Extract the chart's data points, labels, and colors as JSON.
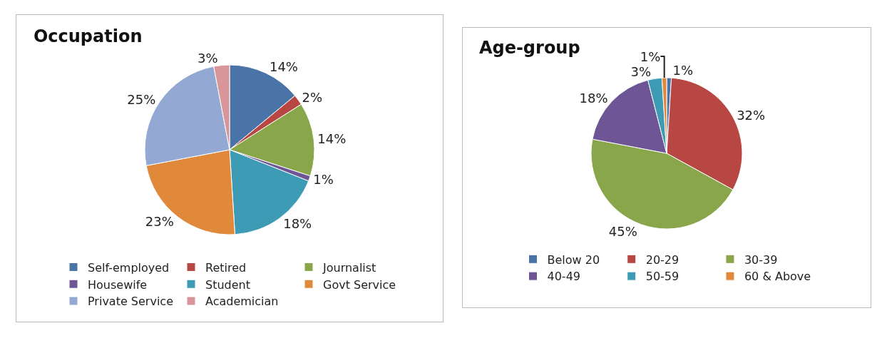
{
  "chart_data": [
    {
      "type": "pie",
      "title": "Occupation",
      "categories": [
        "Self-employed",
        "Retired",
        "Journalist",
        "Housewife",
        "Student",
        "Govt Service",
        "Private Service",
        "Academician"
      ],
      "values": [
        14,
        2,
        14,
        1,
        18,
        23,
        25,
        3
      ],
      "value_labels": [
        "14%",
        "2%",
        "14%",
        "1%",
        "18%",
        "23%",
        "25%",
        "3%"
      ],
      "colors": [
        "#4a73a8",
        "#b84643",
        "#8aa64a",
        "#6e5595",
        "#3e9bb5",
        "#e0893b",
        "#93a9d3",
        "#d9969a"
      ],
      "legend": "bottom"
    },
    {
      "type": "pie",
      "title": "Age-group",
      "categories": [
        "Below 20",
        "20-29",
        "30-39",
        "40-49",
        "50-59",
        "60 & Above"
      ],
      "values": [
        1,
        32,
        45,
        18,
        3,
        1
      ],
      "value_labels": [
        "1%",
        "32%",
        "45%",
        "18%",
        "3%",
        "1%"
      ],
      "colors": [
        "#4a73a8",
        "#b84643",
        "#8aa64a",
        "#6e5595",
        "#3e9bb5",
        "#e0893b"
      ],
      "legend": "bottom"
    }
  ]
}
